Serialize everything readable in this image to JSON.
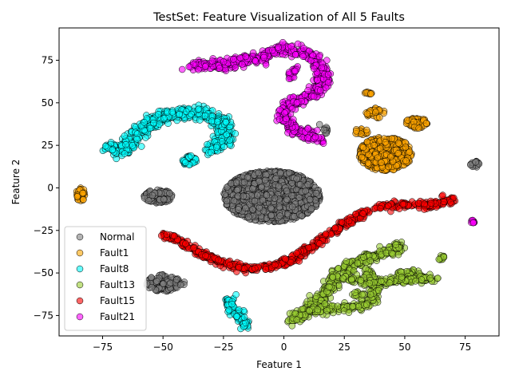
{
  "chart_data": {
    "type": "scatter",
    "title": "TestSet: Feature Visualization of All 5 Faults",
    "xlabel": "Feature 1",
    "ylabel": "Feature 2",
    "xlim": [
      -93,
      89
    ],
    "ylim": [
      -87,
      94
    ],
    "xticks": [
      -75,
      -50,
      -25,
      0,
      25,
      50,
      75
    ],
    "yticks": [
      -75,
      -50,
      -25,
      0,
      25,
      50,
      75
    ],
    "xtick_labels": [
      "−75",
      "−50",
      "−25",
      "0",
      "25",
      "50",
      "75"
    ],
    "ytick_labels": [
      "−75",
      "−50",
      "−25",
      "0",
      "25",
      "50",
      "75"
    ],
    "grid": false,
    "legend_position": "lower-left",
    "series": [
      {
        "name": "Normal",
        "color": "#808080",
        "clusters": [
          {
            "center": [
              -5,
              -5
            ],
            "radius": [
              20,
              15
            ],
            "density": 1400
          },
          {
            "center": [
              -52,
              -5
            ],
            "radius": [
              6,
              4
            ],
            "density": 120
          },
          {
            "center": [
              -50,
              -56
            ],
            "radius": [
              7,
              5
            ],
            "density": 140
          },
          {
            "center": [
              79,
              14
            ],
            "radius": [
              2,
              2
            ],
            "density": 20
          }
        ],
        "paths": [
          {
            "points": [
              [
                16,
                37
              ],
              [
                18,
                33
              ]
            ],
            "width": 1,
            "density": 10
          },
          {
            "points": [
              [
                -42,
                -55
              ],
              [
                -43,
                -56
              ]
            ],
            "width": 1,
            "density": 4
          }
        ]
      },
      {
        "name": "Fault1",
        "color": "#FFA500",
        "clusters": [
          {
            "center": [
              42,
              20
            ],
            "radius": [
              11,
              10
            ],
            "density": 420
          },
          {
            "center": [
              55,
              38
            ],
            "radius": [
              5,
              3
            ],
            "density": 60
          },
          {
            "center": [
              -84,
              -4
            ],
            "radius": [
              2,
              4
            ],
            "density": 30
          },
          {
            "center": [
              35,
              56
            ],
            "radius": [
              1.5,
              1
            ],
            "density": 10
          },
          {
            "center": [
              38,
              44
            ],
            "radius": [
              4,
              3
            ],
            "density": 30
          },
          {
            "center": [
              32,
              33
            ],
            "radius": [
              3,
              2
            ],
            "density": 18
          }
        ],
        "paths": []
      },
      {
        "name": "Fault8",
        "color": "#00FFFF",
        "clusters": [
          {
            "center": [
              -39,
              16
            ],
            "radius": [
              3,
              3
            ],
            "density": 30
          }
        ],
        "paths": [
          {
            "points": [
              [
                -73,
                24
              ],
              [
                -68,
                22
              ],
              [
                -65,
                24
              ],
              [
                -63,
                28
              ],
              [
                -61,
                32
              ],
              [
                -58,
                35
              ],
              [
                -55,
                39
              ],
              [
                -52,
                41
              ],
              [
                -47,
                43
              ],
              [
                -42,
                44
              ],
              [
                -37,
                44
              ],
              [
                -32,
                43
              ],
              [
                -28,
                40
              ],
              [
                -25,
                36
              ],
              [
                -23,
                31
              ],
              [
                -26,
                27
              ],
              [
                -29,
                24
              ],
              [
                -31,
                22
              ]
            ],
            "width": 1.8,
            "density": 560
          },
          {
            "points": [
              [
                -23,
                41
              ],
              [
                -25,
                39
              ]
            ],
            "width": 1,
            "density": 10
          },
          {
            "points": [
              [
                -23,
                -64
              ],
              [
                -22,
                -69
              ],
              [
                -20,
                -73
              ],
              [
                -18,
                -77
              ],
              [
                -16,
                -82
              ]
            ],
            "width": 1.1,
            "density": 90
          }
        ]
      },
      {
        "name": "Fault13",
        "color": "#9ACD32",
        "clusters": [
          {
            "center": [
              52,
              -52
            ],
            "radius": [
              6,
              4
            ],
            "density": 70
          },
          {
            "center": [
              65,
              -41
            ],
            "radius": [
              1.5,
              1.5
            ],
            "density": 10
          }
        ],
        "paths": [
          {
            "points": [
              [
                3,
                -77
              ],
              [
                8,
                -74
              ],
              [
                12,
                -70
              ],
              [
                15,
                -65
              ],
              [
                19,
                -58
              ],
              [
                23,
                -50
              ],
              [
                28,
                -45
              ],
              [
                33,
                -42
              ],
              [
                38,
                -40
              ],
              [
                45,
                -37
              ],
              [
                48,
                -34
              ]
            ],
            "width": 1.6,
            "density": 380
          },
          {
            "points": [
              [
                12,
                -72
              ],
              [
                20,
                -71
              ],
              [
                28,
                -70
              ],
              [
                33,
                -69
              ],
              [
                37,
                -65
              ],
              [
                38,
                -58
              ],
              [
                36,
                -52
              ],
              [
                34,
                -48
              ]
            ],
            "width": 1.3,
            "density": 180
          },
          {
            "points": [
              [
                25,
                -53
              ],
              [
                35,
                -55
              ],
              [
                45,
                -55
              ],
              [
                55,
                -54
              ],
              [
                62,
                -53
              ]
            ],
            "width": 1.2,
            "density": 120
          },
          {
            "points": [
              [
                28,
                -63
              ],
              [
                34,
                -63
              ]
            ],
            "width": 1,
            "density": 14
          }
        ]
      },
      {
        "name": "Fault15",
        "color": "#FF0000",
        "clusters": [],
        "paths": [
          {
            "points": [
              [
                -52,
                -27
              ],
              [
                -45,
                -30
              ],
              [
                -40,
                -34
              ],
              [
                -35,
                -38
              ],
              [
                -30,
                -41
              ],
              [
                -25,
                -44
              ],
              [
                -20,
                -46
              ],
              [
                -15,
                -47
              ],
              [
                -10,
                -47
              ],
              [
                -5,
                -46
              ],
              [
                0,
                -44
              ],
              [
                5,
                -41
              ],
              [
                10,
                -36
              ],
              [
                15,
                -31
              ],
              [
                20,
                -26
              ],
              [
                25,
                -21
              ],
              [
                30,
                -17
              ],
              [
                35,
                -13
              ],
              [
                40,
                -11
              ],
              [
                45,
                -10
              ],
              [
                50,
                -10
              ],
              [
                55,
                -10
              ],
              [
                60,
                -10
              ],
              [
                65,
                -9
              ],
              [
                70,
                -7
              ]
            ],
            "width": 1,
            "density": 560
          },
          {
            "points": [
              [
                65,
                -4
              ],
              [
                66,
                -5
              ]
            ],
            "width": 0.5,
            "density": 2
          }
        ]
      },
      {
        "name": "Fault21",
        "color": "#FF00FF",
        "clusters": [
          {
            "center": [
              78,
              -20
            ],
            "radius": [
              1,
              1
            ],
            "density": 8
          }
        ],
        "paths": [
          {
            "points": [
              [
                -38,
                72
              ],
              [
                -30,
                72
              ],
              [
                -22,
                73
              ],
              [
                -15,
                75
              ],
              [
                -10,
                77
              ],
              [
                -5,
                79
              ],
              [
                0,
                81
              ],
              [
                5,
                81
              ],
              [
                9,
                79
              ],
              [
                13,
                76
              ],
              [
                15,
                72
              ],
              [
                16,
                68
              ],
              [
                17,
                64
              ],
              [
                15,
                59
              ],
              [
                12,
                55
              ],
              [
                8,
                52
              ],
              [
                3,
                49
              ],
              [
                0,
                45
              ],
              [
                0,
                40
              ],
              [
                3,
                35
              ],
              [
                8,
                32
              ],
              [
                13,
                30
              ],
              [
                17,
                28
              ]
            ],
            "width": 1.6,
            "density": 620
          },
          {
            "points": [
              [
                2,
                63
              ],
              [
                3,
                67
              ],
              [
                5,
                71
              ]
            ],
            "width": 0.8,
            "density": 24
          },
          {
            "points": [
              [
                -1,
                41
              ],
              [
                1,
                39
              ]
            ],
            "width": 0.6,
            "density": 8
          }
        ]
      }
    ]
  }
}
